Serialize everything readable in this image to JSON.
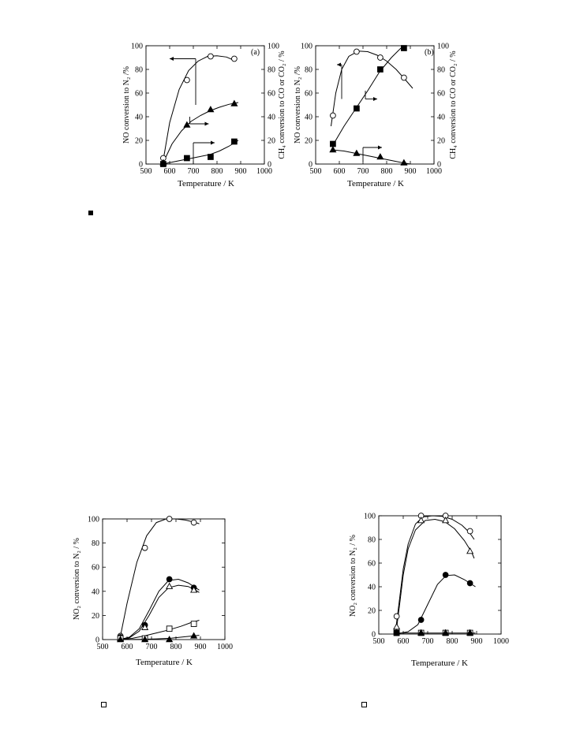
{
  "chart_data": [
    {
      "id": "a",
      "type": "line",
      "panel_label": "(a)",
      "xlabel": "Temperature / K",
      "ylabel": "NO conversion to N₂ /%",
      "y2label": "CH₄ conversion to CO or CO₂ / %",
      "xlim": [
        500,
        1000
      ],
      "ylim": [
        0,
        100
      ],
      "y2lim": [
        0,
        100
      ],
      "xticks": [
        "500",
        "600",
        "700",
        "800",
        "900",
        "1000"
      ],
      "yticks": [
        "0",
        "20",
        "40",
        "60",
        "80",
        "100"
      ],
      "y2ticks": [
        "0",
        "20",
        "40",
        "60",
        "80",
        "100"
      ],
      "grid": false,
      "series": [
        {
          "marker": "open-circle",
          "axis": "left",
          "x": [
            573,
            673,
            773,
            873
          ],
          "y": [
            5,
            71,
            91,
            89
          ],
          "curve": [
            [
              570,
              0
            ],
            [
              600,
              35
            ],
            [
              640,
              63
            ],
            [
              680,
              79
            ],
            [
              720,
              87
            ],
            [
              760,
              91
            ],
            [
              800,
              91.5
            ],
            [
              840,
              90.5
            ],
            [
              880,
              87
            ]
          ]
        },
        {
          "marker": "filled-triangle",
          "axis": "right",
          "x": [
            573,
            673,
            773,
            873
          ],
          "y": [
            1,
            33,
            46,
            51
          ],
          "curve": [
            [
              570,
              0
            ],
            [
              610,
              17
            ],
            [
              650,
              28
            ],
            [
              690,
              36
            ],
            [
              730,
              41
            ],
            [
              770,
              45
            ],
            [
              810,
              48
            ],
            [
              850,
              50.5
            ],
            [
              890,
              52
            ]
          ]
        },
        {
          "marker": "filled-square",
          "axis": "right",
          "x": [
            573,
            673,
            773,
            873
          ],
          "y": [
            0,
            5,
            6,
            19
          ],
          "curve": [
            [
              570,
              0
            ],
            [
              620,
              2
            ],
            [
              670,
              4
            ],
            [
              720,
              6
            ],
            [
              770,
              8
            ],
            [
              810,
              11
            ],
            [
              850,
              15
            ],
            [
              890,
              20
            ]
          ]
        }
      ],
      "axis_arrows": [
        {
          "from": [
            710,
            89
          ],
          "to": [
            600,
            89
          ],
          "drop_to": 50
        },
        {
          "from": [
            685,
            40
          ],
          "drop_to": 34,
          "to": [
            765,
            34
          ]
        },
        {
          "from": [
            700,
            0
          ],
          "rise_to": 18,
          "to": [
            790,
            18
          ]
        }
      ]
    },
    {
      "id": "b",
      "type": "line",
      "panel_label": "(b)",
      "xlabel": "Temperature / K",
      "ylabel": "NO conversion to N₂ /%",
      "y2label": "CH₄ conversion to CO or CO₂ / %",
      "xlim": [
        500,
        1000
      ],
      "ylim": [
        0,
        100
      ],
      "y2lim": [
        0,
        100
      ],
      "xticks": [
        "500",
        "600",
        "700",
        "800",
        "900",
        "1000"
      ],
      "yticks": [
        "0",
        "20",
        "40",
        "60",
        "80",
        "100"
      ],
      "y2ticks": [
        "0",
        "20",
        "40",
        "60",
        "80",
        "100"
      ],
      "grid": false,
      "series": [
        {
          "marker": "open-circle",
          "axis": "left",
          "x": [
            573,
            673,
            773,
            873
          ],
          "y": [
            41,
            95,
            90,
            73
          ],
          "curve": [
            [
              565,
              32
            ],
            [
              585,
              60
            ],
            [
              610,
              80
            ],
            [
              640,
              91
            ],
            [
              680,
              95.5
            ],
            [
              720,
              95
            ],
            [
              760,
              92
            ],
            [
              800,
              87
            ],
            [
              840,
              80
            ],
            [
              880,
              71
            ],
            [
              910,
              64
            ]
          ]
        },
        {
          "marker": "filled-square",
          "axis": "right",
          "x": [
            573,
            673,
            773,
            873
          ],
          "y": [
            17,
            47,
            80,
            98
          ],
          "curve": [
            [
              570,
              15
            ],
            [
              620,
              32
            ],
            [
              670,
              47
            ],
            [
              720,
              62
            ],
            [
              770,
              78
            ],
            [
              820,
              90
            ],
            [
              860,
              98
            ],
            [
              875,
              100
            ]
          ]
        },
        {
          "marker": "filled-triangle",
          "axis": "right",
          "x": [
            573,
            673,
            773,
            873
          ],
          "y": [
            12,
            9,
            6,
            1
          ],
          "curve": [
            [
              570,
              12
            ],
            [
              620,
              11
            ],
            [
              670,
              9
            ],
            [
              720,
              7
            ],
            [
              770,
              5
            ],
            [
              820,
              3
            ],
            [
              870,
              1
            ],
            [
              900,
              0
            ]
          ]
        }
      ],
      "axis_arrows": [
        {
          "from": [
            610,
            84
          ],
          "to": [
            590,
            84
          ],
          "rise_to": 84,
          "from_y": 55
        },
        {
          "from": [
            710,
            62
          ],
          "drop_to": 55,
          "to": [
            760,
            55
          ]
        },
        {
          "from": [
            700,
            2
          ],
          "rise_to": 14,
          "to": [
            780,
            14
          ]
        }
      ]
    },
    {
      "id": "c",
      "type": "line",
      "xlabel": "Temperature / K",
      "ylabel": "NO₂ conversion to N₂ / %",
      "xlim": [
        500,
        1000
      ],
      "ylim": [
        0,
        100
      ],
      "xticks": [
        "500",
        "600",
        "700",
        "800",
        "900",
        "1000"
      ],
      "yticks": [
        "0",
        "20",
        "40",
        "60",
        "80",
        "100"
      ],
      "grid": false,
      "series": [
        {
          "marker": "open-circle",
          "x": [
            573,
            673,
            773,
            873
          ],
          "y": [
            3,
            76,
            100,
            97
          ],
          "curve": [
            [
              570,
              0
            ],
            [
              600,
              30
            ],
            [
              640,
              64
            ],
            [
              680,
              86
            ],
            [
              720,
              97
            ],
            [
              760,
              100
            ],
            [
              800,
              100
            ],
            [
              840,
              99
            ],
            [
              880,
              97
            ],
            [
              895,
              96
            ]
          ]
        },
        {
          "marker": "filled-circle",
          "x": [
            573,
            673,
            773,
            873
          ],
          "y": [
            2,
            12,
            50,
            43
          ],
          "curve": [
            [
              570,
              0
            ],
            [
              610,
              2
            ],
            [
              650,
              9
            ],
            [
              690,
              24
            ],
            [
              730,
              40
            ],
            [
              770,
              49
            ],
            [
              810,
              50
            ],
            [
              850,
              47
            ],
            [
              880,
              43
            ],
            [
              895,
              41
            ]
          ]
        },
        {
          "marker": "open-triangle",
          "x": [
            573,
            673,
            773,
            873
          ],
          "y": [
            1,
            10,
            44,
            41
          ],
          "curve": [
            [
              570,
              0
            ],
            [
              610,
              1.5
            ],
            [
              650,
              7
            ],
            [
              690,
              20
            ],
            [
              730,
              35
            ],
            [
              770,
              43
            ],
            [
              810,
              45
            ],
            [
              850,
              44
            ],
            [
              880,
              41
            ],
            [
              895,
              39
            ]
          ]
        },
        {
          "marker": "open-square",
          "x": [
            573,
            673,
            773,
            873
          ],
          "y": [
            1,
            1,
            9,
            13
          ],
          "curve": [
            [
              570,
              0
            ],
            [
              620,
              1
            ],
            [
              670,
              3
            ],
            [
              720,
              5.5
            ],
            [
              770,
              8
            ],
            [
              820,
              11
            ],
            [
              860,
              14
            ],
            [
              895,
              16
            ]
          ]
        },
        {
          "marker": "filled-triangle",
          "x": [
            573,
            673,
            773,
            873
          ],
          "y": [
            0,
            0,
            0,
            3
          ],
          "curve": [
            [
              570,
              0
            ],
            [
              650,
              0.2
            ],
            [
              720,
              0.6
            ],
            [
              780,
              1.2
            ],
            [
              830,
              2.2
            ],
            [
              870,
              3
            ],
            [
              895,
              3.5
            ]
          ]
        }
      ]
    },
    {
      "id": "d",
      "type": "line",
      "xlabel": "Temperature / K",
      "ylabel": "NO₂ conversion to N₂ / %",
      "xlim": [
        500,
        1000
      ],
      "ylim": [
        0,
        100
      ],
      "xticks": [
        "500",
        "600",
        "700",
        "800",
        "900",
        "1000"
      ],
      "yticks": [
        "0",
        "20",
        "40",
        "60",
        "80",
        "100"
      ],
      "grid": false,
      "series": [
        {
          "marker": "open-circle",
          "x": [
            573,
            673,
            773,
            873
          ],
          "y": [
            15,
            100,
            100,
            87
          ],
          "curve": [
            [
              570,
              5
            ],
            [
              585,
              30
            ],
            [
              600,
              55
            ],
            [
              620,
              76
            ],
            [
              650,
              93
            ],
            [
              680,
              99
            ],
            [
              720,
              100
            ],
            [
              760,
              99.5
            ],
            [
              800,
              97
            ],
            [
              840,
              92
            ],
            [
              870,
              86
            ],
            [
              890,
              80
            ]
          ]
        },
        {
          "marker": "open-triangle",
          "x": [
            573,
            673,
            773,
            873
          ],
          "y": [
            6,
            96,
            96,
            70
          ],
          "curve": [
            [
              570,
              0
            ],
            [
              585,
              25
            ],
            [
              600,
              50
            ],
            [
              620,
              72
            ],
            [
              650,
              88
            ],
            [
              690,
              96
            ],
            [
              730,
              97
            ],
            [
              770,
              95
            ],
            [
              810,
              89
            ],
            [
              850,
              79
            ],
            [
              880,
              69
            ],
            [
              890,
              64
            ]
          ]
        },
        {
          "marker": "filled-circle",
          "x": [
            573,
            673,
            773,
            873
          ],
          "y": [
            1,
            12,
            50,
            43
          ],
          "curve": [
            [
              570,
              0
            ],
            [
              620,
              2
            ],
            [
              660,
              8
            ],
            [
              700,
              25
            ],
            [
              740,
              42
            ],
            [
              775,
              49.5
            ],
            [
              810,
              50
            ],
            [
              850,
              46
            ],
            [
              880,
              42
            ],
            [
              895,
              40
            ]
          ]
        },
        {
          "marker": "open-square",
          "x": [
            573,
            673,
            773,
            873
          ],
          "y": [
            1,
            1,
            1,
            1
          ],
          "curve": [
            [
              570,
              0.8
            ],
            [
              895,
              0.8
            ]
          ]
        },
        {
          "marker": "filled-square",
          "x": [
            573
          ],
          "y": [
            1
          ],
          "curve": []
        },
        {
          "marker": "filled-triangle",
          "x": [
            673,
            773,
            873
          ],
          "y": [
            1,
            1,
            1
          ],
          "curve": []
        }
      ]
    }
  ]
}
